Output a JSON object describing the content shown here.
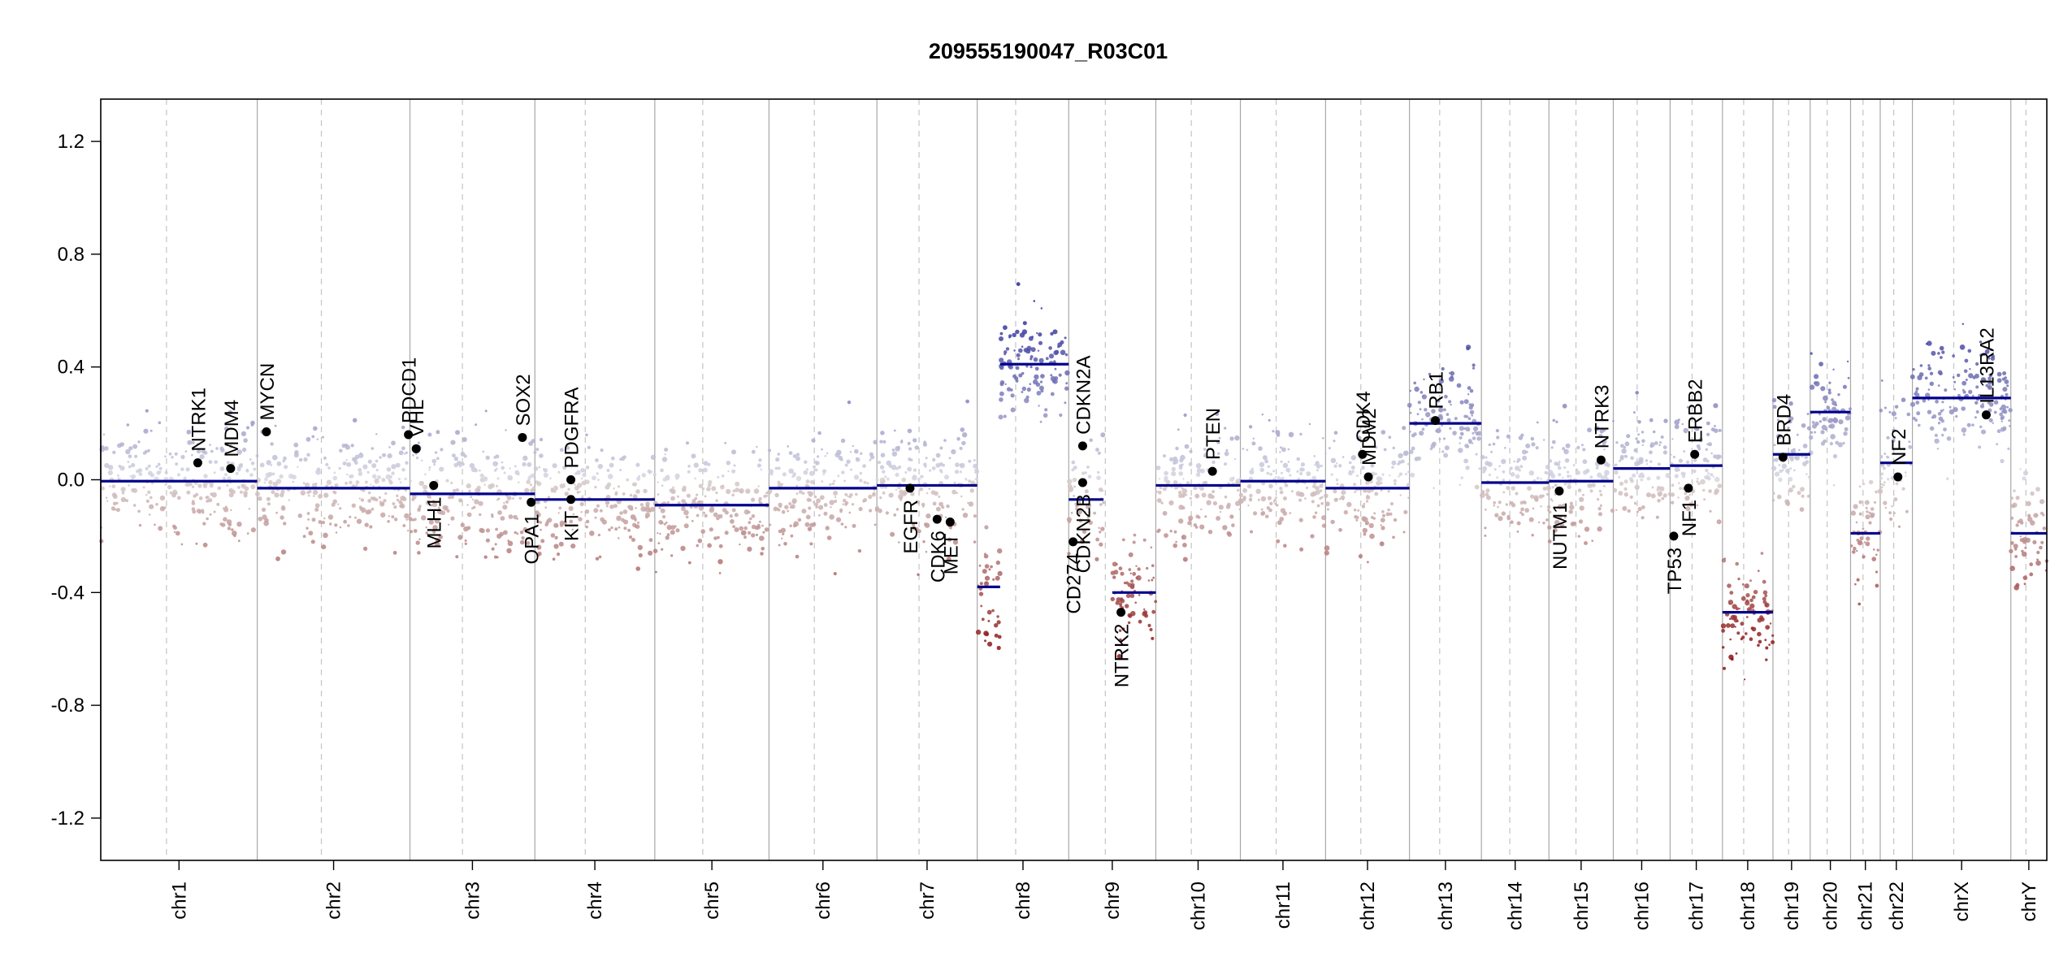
{
  "chart_data": {
    "type": "scatter",
    "title": "209555190047_R03C01",
    "xlabel": "",
    "ylabel": "",
    "ylim": [
      -1.35,
      1.35
    ],
    "yticks": [
      "1.2",
      "0.8",
      "0.4",
      "0.0",
      "-0.4",
      "-0.8",
      "-1.2"
    ],
    "yticks_values": [
      1.2,
      0.8,
      0.4,
      0.0,
      -0.4,
      -0.8,
      -1.2
    ],
    "colors": {
      "gain": "#3b3f9e",
      "neutral": "#d0d0d4",
      "loss": "#8b1a1a",
      "segment": "#00008b",
      "gene_point": "#000000"
    },
    "chromosomes": [
      {
        "name": "chr1",
        "len": 248
      },
      {
        "name": "chr2",
        "len": 242
      },
      {
        "name": "chr3",
        "len": 198
      },
      {
        "name": "chr4",
        "len": 190
      },
      {
        "name": "chr5",
        "len": 181
      },
      {
        "name": "chr6",
        "len": 171
      },
      {
        "name": "chr7",
        "len": 159
      },
      {
        "name": "chr8",
        "len": 145
      },
      {
        "name": "chr9",
        "len": 138
      },
      {
        "name": "chr10",
        "len": 134
      },
      {
        "name": "chr11",
        "len": 135
      },
      {
        "name": "chr12",
        "len": 133
      },
      {
        "name": "chr13",
        "len": 114
      },
      {
        "name": "chr14",
        "len": 107
      },
      {
        "name": "chr15",
        "len": 102
      },
      {
        "name": "chr16",
        "len": 90
      },
      {
        "name": "chr17",
        "len": 83
      },
      {
        "name": "chr18",
        "len": 80
      },
      {
        "name": "chr19",
        "len": 59
      },
      {
        "name": "chr20",
        "len": 64
      },
      {
        "name": "chr21",
        "len": 47
      },
      {
        "name": "chr22",
        "len": 51
      },
      {
        "name": "chrX",
        "len": 156
      },
      {
        "name": "chrY",
        "len": 57
      }
    ],
    "segments": [
      {
        "chr": "chr1",
        "start": 0,
        "end": 1,
        "value": -0.005
      },
      {
        "chr": "chr2",
        "start": 0,
        "end": 1,
        "value": -0.03
      },
      {
        "chr": "chr3",
        "start": 0,
        "end": 1,
        "value": -0.05
      },
      {
        "chr": "chr4",
        "start": 0,
        "end": 1,
        "value": -0.07
      },
      {
        "chr": "chr5",
        "start": 0,
        "end": 1,
        "value": -0.09
      },
      {
        "chr": "chr6",
        "start": 0,
        "end": 1,
        "value": -0.03
      },
      {
        "chr": "chr7",
        "start": 0,
        "end": 1,
        "value": -0.02
      },
      {
        "chr": "chr8",
        "start": 0,
        "end": 0.25,
        "value": -0.38
      },
      {
        "chr": "chr8",
        "start": 0.25,
        "end": 1,
        "value": 0.41
      },
      {
        "chr": "chr9",
        "start": 0,
        "end": 0.4,
        "value": -0.07
      },
      {
        "chr": "chr9",
        "start": 0.5,
        "end": 1,
        "value": -0.4
      },
      {
        "chr": "chr10",
        "start": 0,
        "end": 1,
        "value": -0.02
      },
      {
        "chr": "chr11",
        "start": 0,
        "end": 1,
        "value": -0.005
      },
      {
        "chr": "chr12",
        "start": 0,
        "end": 1,
        "value": -0.03
      },
      {
        "chr": "chr13",
        "start": 0,
        "end": 1,
        "value": 0.2
      },
      {
        "chr": "chr14",
        "start": 0,
        "end": 1,
        "value": -0.01
      },
      {
        "chr": "chr15",
        "start": 0,
        "end": 1,
        "value": -0.005
      },
      {
        "chr": "chr16",
        "start": 0,
        "end": 1,
        "value": 0.04
      },
      {
        "chr": "chr17",
        "start": 0,
        "end": 1,
        "value": 0.05
      },
      {
        "chr": "chr18",
        "start": 0,
        "end": 1,
        "value": -0.47
      },
      {
        "chr": "chr19",
        "start": 0,
        "end": 1,
        "value": 0.09
      },
      {
        "chr": "chr20",
        "start": 0,
        "end": 1,
        "value": 0.24
      },
      {
        "chr": "chr21",
        "start": 0,
        "end": 1,
        "value": -0.19
      },
      {
        "chr": "chr22",
        "start": 0,
        "end": 1,
        "value": 0.06
      },
      {
        "chr": "chrX",
        "start": 0,
        "end": 1,
        "value": 0.29
      },
      {
        "chr": "chrY",
        "start": 0,
        "end": 1,
        "value": -0.19
      }
    ],
    "genes": [
      {
        "name": "NTRK1",
        "chr": "chr1",
        "pos": 0.62,
        "value": 0.06
      },
      {
        "name": "MDM4",
        "chr": "chr1",
        "pos": 0.83,
        "value": 0.04
      },
      {
        "name": "MYCN",
        "chr": "chr2",
        "pos": 0.06,
        "value": 0.17
      },
      {
        "name": "PDCD1",
        "chr": "chr2",
        "pos": 0.99,
        "value": 0.16
      },
      {
        "name": "VHL",
        "chr": "chr3",
        "pos": 0.05,
        "value": 0.11
      },
      {
        "name": "MLH1",
        "chr": "chr3",
        "pos": 0.19,
        "value": -0.02
      },
      {
        "name": "SOX2",
        "chr": "chr3",
        "pos": 0.9,
        "value": 0.15
      },
      {
        "name": "OPA1",
        "chr": "chr3",
        "pos": 0.97,
        "value": -0.08
      },
      {
        "name": "PDGFRA",
        "chr": "chr4",
        "pos": 0.3,
        "value": 0.0
      },
      {
        "name": "KIT",
        "chr": "chr4",
        "pos": 0.3,
        "value": -0.07
      },
      {
        "name": "EGFR",
        "chr": "chr7",
        "pos": 0.33,
        "value": -0.03
      },
      {
        "name": "CDK6",
        "chr": "chr7",
        "pos": 0.6,
        "value": -0.14
      },
      {
        "name": "MET",
        "chr": "chr7",
        "pos": 0.73,
        "value": -0.15
      },
      {
        "name": "CDKN2A",
        "chr": "chr9",
        "pos": 0.16,
        "value": 0.12
      },
      {
        "name": "CDKN2B",
        "chr": "chr9",
        "pos": 0.16,
        "value": -0.01
      },
      {
        "name": "CD274",
        "chr": "chr9",
        "pos": 0.05,
        "value": -0.22
      },
      {
        "name": "NTRK2",
        "chr": "chr9",
        "pos": 0.6,
        "value": -0.47
      },
      {
        "name": "PTEN",
        "chr": "chr10",
        "pos": 0.67,
        "value": 0.03
      },
      {
        "name": "CDK4",
        "chr": "chr12",
        "pos": 0.44,
        "value": 0.09
      },
      {
        "name": "MDM2",
        "chr": "chr12",
        "pos": 0.51,
        "value": 0.01
      },
      {
        "name": "RB1",
        "chr": "chr13",
        "pos": 0.36,
        "value": 0.21
      },
      {
        "name": "NUTM1",
        "chr": "chr15",
        "pos": 0.16,
        "value": -0.04
      },
      {
        "name": "NTRK3",
        "chr": "chr15",
        "pos": 0.81,
        "value": 0.07
      },
      {
        "name": "TP53",
        "chr": "chr17",
        "pos": 0.07,
        "value": -0.2
      },
      {
        "name": "NF1",
        "chr": "chr17",
        "pos": 0.35,
        "value": -0.03
      },
      {
        "name": "ERBB2",
        "chr": "chr17",
        "pos": 0.47,
        "value": 0.09
      },
      {
        "name": "BRD4",
        "chr": "chr19",
        "pos": 0.27,
        "value": 0.08
      },
      {
        "name": "NF2",
        "chr": "chr22",
        "pos": 0.55,
        "value": 0.01
      },
      {
        "name": "IL13RA2",
        "chr": "chrX",
        "pos": 0.75,
        "value": 0.23
      }
    ]
  }
}
